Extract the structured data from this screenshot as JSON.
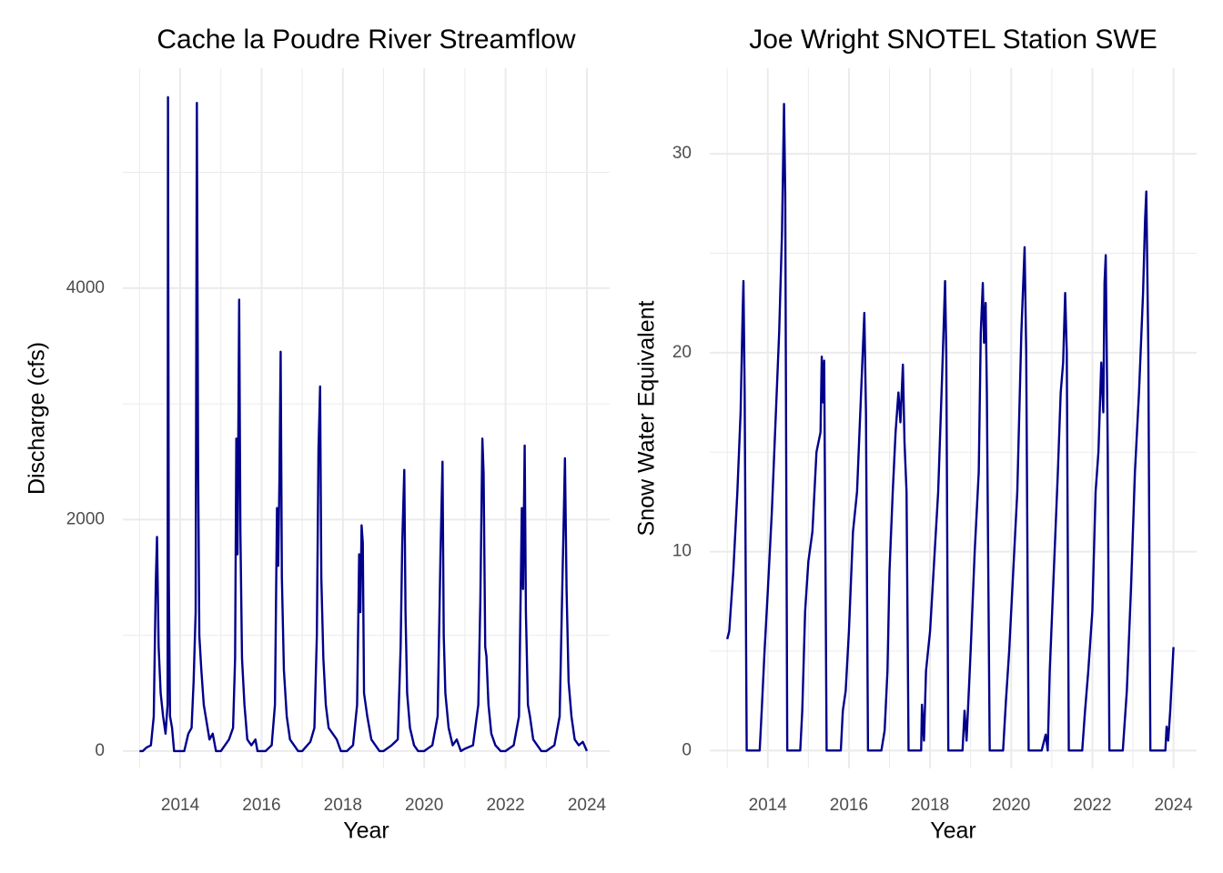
{
  "chart_data": [
    {
      "type": "line",
      "title": "Cache la Poudre River Streamflow",
      "xlabel": "Year",
      "ylabel": "Discharge (cfs)",
      "color": "#00008b",
      "grid": true,
      "xlim": [
        2012.59,
        2024.56
      ],
      "xticks": [
        2014,
        2016,
        2018,
        2020,
        2022,
        2024
      ],
      "xminor": [
        2013,
        2015,
        2017,
        2019,
        2021,
        2023
      ],
      "ylim": [
        -150,
        5900
      ],
      "yticks": [
        0,
        2000,
        4000
      ],
      "yminor": [
        1000,
        3000,
        5000
      ],
      "x": [
        2013.0,
        2013.08,
        2013.17,
        2013.28,
        2013.35,
        2013.4,
        2013.43,
        2013.47,
        2013.52,
        2013.58,
        2013.64,
        2013.69,
        2013.7,
        2013.72,
        2013.75,
        2013.8,
        2013.85,
        2013.95,
        2014.1,
        2014.2,
        2014.28,
        2014.33,
        2014.38,
        2014.41,
        2014.44,
        2014.47,
        2014.52,
        2014.58,
        2014.65,
        2014.72,
        2014.8,
        2014.88,
        2015.0,
        2015.2,
        2015.3,
        2015.35,
        2015.38,
        2015.41,
        2015.45,
        2015.48,
        2015.52,
        2015.58,
        2015.65,
        2015.75,
        2015.85,
        2015.9,
        2016.1,
        2016.25,
        2016.33,
        2016.38,
        2016.41,
        2016.44,
        2016.47,
        2016.5,
        2016.55,
        2016.62,
        2016.7,
        2016.8,
        2016.9,
        2017.0,
        2017.2,
        2017.3,
        2017.36,
        2017.4,
        2017.44,
        2017.47,
        2017.52,
        2017.58,
        2017.65,
        2017.75,
        2017.85,
        2017.95,
        2018.1,
        2018.25,
        2018.35,
        2018.4,
        2018.43,
        2018.46,
        2018.49,
        2018.52,
        2018.6,
        2018.7,
        2018.8,
        2018.9,
        2019.0,
        2019.2,
        2019.35,
        2019.42,
        2019.46,
        2019.51,
        2019.54,
        2019.58,
        2019.65,
        2019.75,
        2019.85,
        2020.0,
        2020.2,
        2020.33,
        2020.4,
        2020.45,
        2020.48,
        2020.52,
        2020.6,
        2020.7,
        2020.8,
        2020.9,
        2021.0,
        2021.2,
        2021.33,
        2021.38,
        2021.43,
        2021.46,
        2021.5,
        2021.53,
        2021.58,
        2021.65,
        2021.75,
        2021.88,
        2022.0,
        2022.2,
        2022.33,
        2022.4,
        2022.43,
        2022.47,
        2022.5,
        2022.55,
        2022.6,
        2022.68,
        2022.78,
        2022.88,
        2023.0,
        2023.2,
        2023.33,
        2023.4,
        2023.43,
        2023.46,
        2023.5,
        2023.55,
        2023.62,
        2023.7,
        2023.8,
        2023.9,
        2024.0
      ],
      "values": [
        0,
        0,
        30,
        50,
        300,
        1450,
        1850,
        900,
        500,
        300,
        150,
        400,
        5650,
        1500,
        300,
        200,
        0,
        0,
        0,
        150,
        200,
        600,
        1200,
        5600,
        2500,
        1000,
        700,
        400,
        250,
        100,
        150,
        0,
        0,
        100,
        200,
        800,
        2700,
        1700,
        3900,
        1900,
        800,
        400,
        100,
        50,
        100,
        0,
        0,
        50,
        400,
        2100,
        1600,
        2350,
        3450,
        1500,
        700,
        300,
        100,
        50,
        0,
        0,
        80,
        200,
        1000,
        2600,
        3150,
        1500,
        800,
        400,
        200,
        150,
        100,
        0,
        0,
        50,
        400,
        1700,
        1200,
        1950,
        1800,
        500,
        300,
        100,
        50,
        0,
        0,
        50,
        100,
        900,
        1800,
        2430,
        1200,
        500,
        200,
        50,
        0,
        0,
        50,
        300,
        1700,
        2500,
        1000,
        500,
        200,
        50,
        100,
        0,
        20,
        50,
        400,
        1300,
        2700,
        2400,
        900,
        820,
        400,
        150,
        50,
        0,
        0,
        50,
        300,
        2100,
        1400,
        2640,
        1200,
        400,
        300,
        100,
        50,
        0,
        0,
        50,
        300,
        1500,
        2000,
        2530,
        1400,
        600,
        300,
        100,
        50,
        80,
        0
      ]
    },
    {
      "type": "line",
      "title": "Joe Wright SNOTEL Station SWE",
      "xlabel": "Year",
      "ylabel": "Snow Water Equivalent",
      "color": "#00008b",
      "grid": true,
      "xlim": [
        2012.57,
        2024.57
      ],
      "xticks": [
        2014,
        2016,
        2018,
        2020,
        2022,
        2024
      ],
      "xminor": [
        2013,
        2015,
        2017,
        2019,
        2021,
        2023
      ],
      "ylim": [
        -0.9,
        34.3
      ],
      "yticks": [
        0,
        10,
        20,
        30
      ],
      "yminor": [
        5,
        15,
        25
      ],
      "x": [
        2013.0,
        2013.05,
        2013.15,
        2013.25,
        2013.33,
        2013.38,
        2013.4,
        2013.43,
        2013.48,
        2013.8,
        2013.85,
        2013.92,
        2014.0,
        2014.1,
        2014.2,
        2014.28,
        2014.35,
        2014.4,
        2014.43,
        2014.48,
        2014.8,
        2014.85,
        2014.92,
        2015.0,
        2015.1,
        2015.2,
        2015.3,
        2015.33,
        2015.36,
        2015.39,
        2015.42,
        2015.45,
        2015.8,
        2015.85,
        2015.92,
        2016.0,
        2016.1,
        2016.2,
        2016.3,
        2016.38,
        2016.42,
        2016.47,
        2016.8,
        2016.88,
        2016.95,
        2017.0,
        2017.08,
        2017.15,
        2017.22,
        2017.27,
        2017.33,
        2017.37,
        2017.42,
        2017.47,
        2017.78,
        2017.8,
        2017.85,
        2017.9,
        2018.0,
        2018.1,
        2018.2,
        2018.3,
        2018.37,
        2018.4,
        2018.45,
        2018.8,
        2018.85,
        2018.9,
        2019.0,
        2019.1,
        2019.2,
        2019.25,
        2019.3,
        2019.33,
        2019.37,
        2019.4,
        2019.47,
        2019.8,
        2019.87,
        2019.95,
        2020.05,
        2020.15,
        2020.25,
        2020.33,
        2020.37,
        2020.43,
        2020.75,
        2020.85,
        2020.9,
        2020.95,
        2021.05,
        2021.15,
        2021.22,
        2021.28,
        2021.33,
        2021.37,
        2021.42,
        2021.75,
        2021.82,
        2021.9,
        2022.0,
        2022.08,
        2022.15,
        2022.22,
        2022.27,
        2022.3,
        2022.33,
        2022.38,
        2022.42,
        2022.75,
        2022.85,
        2022.95,
        2023.05,
        2023.15,
        2023.25,
        2023.3,
        2023.33,
        2023.38,
        2023.43,
        2023.8,
        2023.83,
        2023.87,
        2023.92,
        2024.0
      ],
      "values": [
        5.6,
        6,
        9,
        13,
        17,
        22,
        23.6,
        18,
        0,
        0,
        2,
        5,
        8,
        12,
        17,
        21,
        26,
        32.5,
        28,
        0,
        0,
        2,
        7,
        9.5,
        11,
        15,
        16,
        19.8,
        17.5,
        19.6,
        10,
        0,
        0,
        2,
        3,
        6,
        11,
        13,
        18,
        22,
        17,
        0,
        0,
        1,
        4,
        9,
        13,
        16,
        18,
        16.5,
        19.4,
        15.5,
        13,
        0,
        0,
        2.3,
        0.5,
        4,
        6,
        9.5,
        13,
        19,
        23.6,
        20,
        0,
        0,
        2,
        0.5,
        5,
        10,
        14,
        21,
        23.5,
        20.5,
        22.5,
        18,
        0,
        0,
        2.5,
        5,
        9,
        13,
        21,
        25.3,
        20,
        0,
        0,
        0.8,
        0,
        4,
        9,
        14,
        18,
        19.5,
        23,
        20,
        0,
        0,
        2,
        4,
        7,
        13,
        15,
        19.5,
        17,
        23.5,
        24.9,
        15,
        0,
        0,
        3,
        8,
        14,
        18,
        23,
        26.7,
        28.1,
        20,
        0,
        0,
        1.2,
        0.5,
        2,
        5.2
      ]
    }
  ]
}
